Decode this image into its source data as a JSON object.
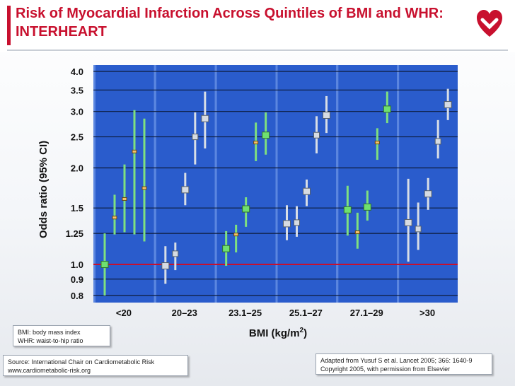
{
  "title": "Risk of Myocardial Infarction Across Quintiles of BMI and WHR: INTERHEART",
  "abbreviations": [
    "BMI: body mass index",
    "WHR: waist-to-hip ratio"
  ],
  "source": [
    "Source: International Chair on Cardiometabolic Risk",
    "www.cardiometabolic-risk.org"
  ],
  "reference": [
    "Adapted from Yusuf S et al. Lancet 2005; 366: 1640-9",
    "Copyright 2005, with permission from Elsevier"
  ],
  "colors": {
    "title": "#c8102e",
    "plot_background": "#2a5ccc",
    "bmi_series": "#7fe07f",
    "whr_series": "#d8dee6",
    "reference_line": "#c8102e",
    "gridline": "#0d1b3a"
  },
  "chart_data": {
    "type": "scatter",
    "title": "",
    "xlabel": "BMI (kg/m2)",
    "xlabel_main": "BMI (kg/m",
    "xlabel_sup": "2",
    "xlabel_end": ")",
    "ylabel": "Odds ratio (95% CI)",
    "y_scale": "log",
    "ylim": [
      0.8,
      4.0
    ],
    "y_ticks": [
      0.8,
      0.9,
      1.0,
      1.25,
      1.5,
      2.0,
      2.5,
      3.0,
      3.5,
      4.0
    ],
    "y_tick_labels": [
      "0.8",
      "0.9",
      "1.0",
      "1.25",
      "1.5",
      "2.0",
      "2.5",
      "3.0",
      "3.5",
      "4.0"
    ],
    "reference_line": 1.0,
    "grid": true,
    "categories": [
      "<20",
      "20–23",
      "23.1–25",
      "25.1–27",
      "27.1–29",
      ">30"
    ],
    "series": [
      {
        "role": "BMI quintile",
        "marker": "green-square",
        "color": "#7fe07f",
        "points": [
          {
            "category": 0,
            "slot": 0,
            "or": 1.0,
            "low": 0.8,
            "high": 1.25
          },
          {
            "category": 2,
            "slot": 0,
            "or": 1.12,
            "low": 0.99,
            "high": 1.27
          },
          {
            "category": 2,
            "slot": 2,
            "or": 1.49,
            "low": 1.31,
            "high": 1.62
          },
          {
            "category": 2,
            "slot": 4,
            "or": 2.53,
            "low": 2.2,
            "high": 2.98
          },
          {
            "category": 4,
            "slot": 0,
            "or": 1.48,
            "low": 1.23,
            "high": 1.76
          },
          {
            "category": 4,
            "slot": 2,
            "or": 1.51,
            "low": 1.37,
            "high": 1.7
          },
          {
            "category": 4,
            "slot": 4,
            "or": 3.05,
            "low": 2.76,
            "high": 3.46
          }
        ]
      },
      {
        "role": "WHR quintile",
        "marker": "gray-square",
        "color": "#d8dee6",
        "points": [
          {
            "category": 1,
            "slot": 0,
            "or": 0.99,
            "low": 0.87,
            "high": 1.14
          },
          {
            "category": 1,
            "slot": 2,
            "or": 1.71,
            "low": 1.53,
            "high": 1.93
          },
          {
            "category": 1,
            "slot": 4,
            "or": 2.85,
            "low": 2.3,
            "high": 3.46
          },
          {
            "category": 3,
            "slot": 0,
            "or": 1.34,
            "low": 1.19,
            "high": 1.53
          },
          {
            "category": 3,
            "slot": 2,
            "or": 1.69,
            "low": 1.52,
            "high": 1.84
          },
          {
            "category": 3,
            "slot": 4,
            "or": 2.92,
            "low": 2.57,
            "high": 3.35
          },
          {
            "category": 5,
            "slot": 0,
            "or": 1.35,
            "low": 1.02,
            "high": 1.85
          },
          {
            "category": 5,
            "slot": 2,
            "or": 1.66,
            "low": 1.48,
            "high": 1.86
          },
          {
            "category": 5,
            "slot": 4,
            "or": 3.15,
            "low": 2.82,
            "high": 3.53
          }
        ]
      },
      {
        "role": "Small point estimates (green bars)",
        "marker": "small-dash",
        "color": "#7fe07f",
        "points": [
          {
            "category": 0,
            "slot": 1,
            "or": 1.4,
            "low": 1.24,
            "high": 1.65
          },
          {
            "category": 0,
            "slot": 2,
            "or": 1.6,
            "low": 1.26,
            "high": 2.05
          },
          {
            "category": 0,
            "slot": 3,
            "or": 2.25,
            "low": 1.24,
            "high": 3.03
          },
          {
            "category": 0,
            "slot": 4,
            "or": 1.73,
            "low": 1.18,
            "high": 2.85
          },
          {
            "category": 2,
            "slot": 1,
            "or": 1.24,
            "low": 1.09,
            "high": 1.33
          },
          {
            "category": 2,
            "slot": 3,
            "or": 2.4,
            "low": 2.1,
            "high": 2.77
          },
          {
            "category": 4,
            "slot": 1,
            "or": 1.26,
            "low": 1.12,
            "high": 1.45
          },
          {
            "category": 4,
            "slot": 3,
            "or": 2.4,
            "low": 2.12,
            "high": 2.66
          }
        ]
      },
      {
        "role": "Small point estimates (gray bars)",
        "marker": "gray-small",
        "color": "#d8dee6",
        "points": [
          {
            "category": 1,
            "slot": 1,
            "or": 1.08,
            "low": 0.96,
            "high": 1.17
          },
          {
            "category": 1,
            "slot": 3,
            "or": 2.5,
            "low": 2.05,
            "high": 2.98
          },
          {
            "category": 3,
            "slot": 1,
            "or": 1.35,
            "low": 1.22,
            "high": 1.52
          },
          {
            "category": 3,
            "slot": 3,
            "or": 2.53,
            "low": 2.22,
            "high": 2.9
          },
          {
            "category": 5,
            "slot": 1,
            "or": 1.29,
            "low": 1.11,
            "high": 1.56
          },
          {
            "category": 5,
            "slot": 3,
            "or": 2.42,
            "low": 2.14,
            "high": 2.82
          }
        ]
      }
    ]
  }
}
